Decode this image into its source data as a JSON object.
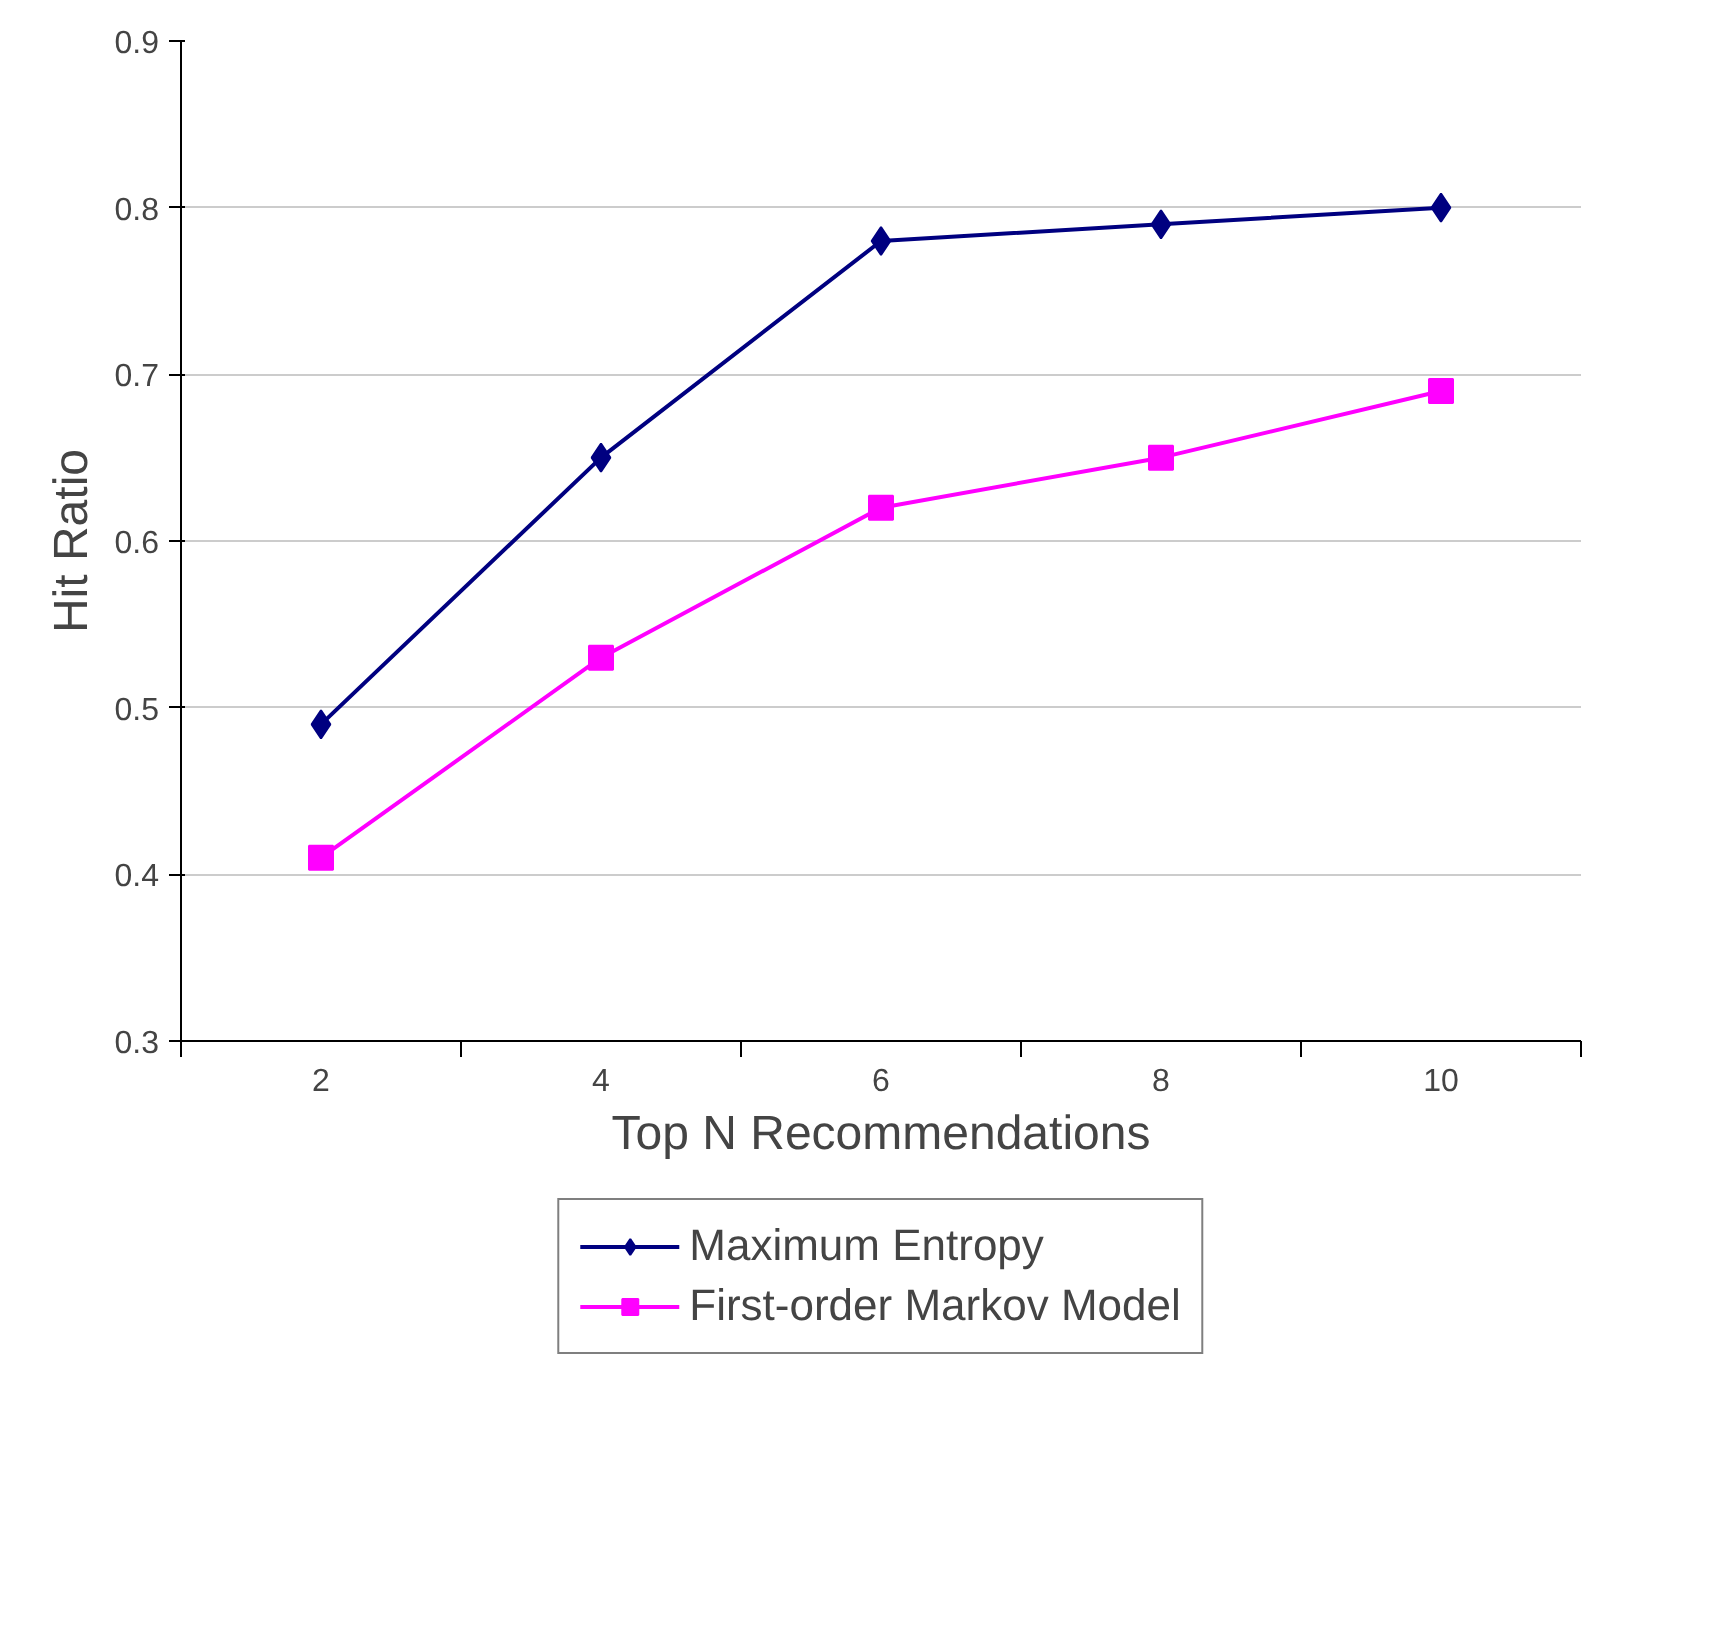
{
  "chart_data": {
    "type": "line",
    "xlabel": "Top N Recommendations",
    "ylabel": "Hit Ratio",
    "categories": [
      "2",
      "4",
      "6",
      "8",
      "10"
    ],
    "series": [
      {
        "name": "Maximum Entropy",
        "color": "#000080",
        "marker": "diamond",
        "values": [
          0.49,
          0.65,
          0.78,
          0.79,
          0.8
        ]
      },
      {
        "name": "First-order Markov Model",
        "color": "#ff00ff",
        "marker": "square",
        "values": [
          0.41,
          0.53,
          0.62,
          0.65,
          0.69
        ]
      }
    ],
    "ylim": [
      0.3,
      0.9
    ],
    "yticks": [
      0.3,
      0.4,
      0.5,
      0.6,
      0.7,
      0.8,
      0.9
    ],
    "grid": "y",
    "legend": "bottom",
    "line_style": "solid"
  }
}
